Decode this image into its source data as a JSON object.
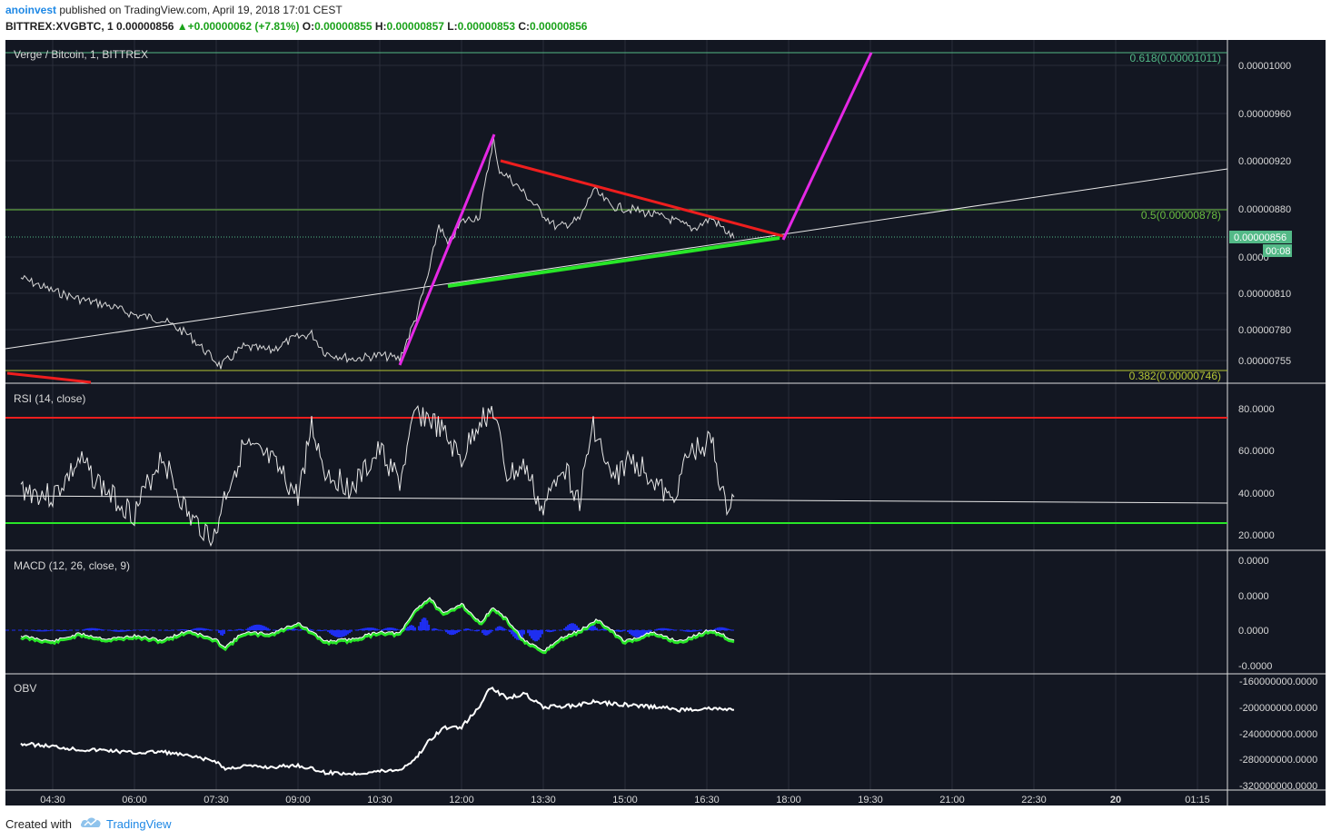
{
  "header": {
    "author": "anoinvest",
    "published_text": "published on TradingView.com, April 19, 2018 17:01 CEST",
    "symbol": "BITTREX:XVGBTC, 1",
    "last_price": "0.00000856",
    "change": "+0.00000062 (+7.81%)",
    "o_label": "O:",
    "o_value": "0.00000855",
    "h_label": "H:",
    "h_value": "0.00000857",
    "l_label": "L:",
    "l_value": "0.00000853",
    "c_label": "C:",
    "c_value": "0.00000856"
  },
  "footer": {
    "created_with": "Created with",
    "brand": "TradingView"
  },
  "icons": {
    "logo": "tradingview-cloud-icon",
    "change_arrow": "up-triangle-icon"
  },
  "colors": {
    "background": "#131722",
    "price_line": "#d8d8d8",
    "rsi_line": "#e8e8e8",
    "drawing_magenta": "#e528e5",
    "drawing_red": "#ee1e1e",
    "drawing_green": "#28e628",
    "fib_green": "#6abf40",
    "last_price_label": "#53b987",
    "macd_hist": "#1e2ef0",
    "obv_line": "#ffffff"
  },
  "chart_data": [
    {
      "type": "line",
      "pane": "price",
      "title": "Verge / Bitcoin, 1, BITTREX",
      "x_axis_labels": [
        "04:30",
        "06:00",
        "07:30",
        "09:00",
        "10:30",
        "12:00",
        "13:30",
        "15:00",
        "16:30",
        "18:00",
        "19:30",
        "21:00",
        "22:30",
        "20",
        "01:15"
      ],
      "y_axis_labels": [
        "0.00001000",
        "0.00000960",
        "0.00000920",
        "0.00000880",
        "0.0000",
        "0.00000810",
        "0.00000780",
        "0.00000755"
      ],
      "ylim": [
        7.5e-06,
        1.011e-05
      ],
      "series": [
        {
          "x": [
            "03:55",
            "04:30",
            "05:00",
            "05:30",
            "06:00",
            "06:30",
            "07:00",
            "07:20",
            "07:35",
            "08:00",
            "08:30",
            "08:55",
            "09:15",
            "09:30",
            "10:00",
            "10:30",
            "10:52",
            "11:10",
            "11:25",
            "11:35",
            "11:45",
            "12:00",
            "12:20",
            "12:35",
            "12:40",
            "12:55",
            "13:10",
            "13:25",
            "13:45",
            "14:10",
            "14:25",
            "14:45",
            "15:10",
            "15:30",
            "15:50",
            "16:15",
            "16:35",
            "17:00"
          ],
          "values": [
            8.23e-06,
            8.12e-06,
            8.05e-06,
            8e-06,
            7.92e-06,
            7.88e-06,
            7.75e-06,
            7.6e-06,
            7.49e-06,
            7.65e-06,
            7.62e-06,
            7.72e-06,
            7.76e-06,
            7.6e-06,
            7.55e-06,
            7.58e-06,
            7.55e-06,
            7.9e-06,
            8.3e-06,
            8.68e-06,
            8.5e-06,
            8.7e-06,
            8.75e-06,
            9.4e-06,
            9.15e-06,
            9.05e-06,
            8.93e-06,
            8.8e-06,
            8.65e-06,
            8.72e-06,
            8.97e-06,
            8.83e-06,
            8.8e-06,
            8.76e-06,
            8.72e-06,
            8.64e-06,
            8.73e-06,
            8.56e-06
          ]
        }
      ],
      "last_price_label": "0.00000856",
      "countdown_label": "00:08",
      "fib_levels": [
        {
          "label": "0.618(0.00001011)",
          "value": 1.011e-05
        },
        {
          "label": "0.5(0.00000878)",
          "value": 8.78e-06
        },
        {
          "label": "0.382(0.00000746)",
          "value": 7.46e-06
        }
      ]
    },
    {
      "type": "line",
      "pane": "rsi",
      "title": "RSI (14, close)",
      "y_axis_labels": [
        "80.0000",
        "60.0000",
        "40.0000",
        "20.0000"
      ],
      "ylim": [
        15,
        87
      ],
      "levels": [
        75,
        25
      ],
      "series": [
        {
          "x": [
            "03:55",
            "04:30",
            "05:00",
            "05:30",
            "06:00",
            "06:30",
            "07:00",
            "07:30",
            "07:35",
            "08:00",
            "08:30",
            "09:00",
            "09:15",
            "09:30",
            "10:00",
            "10:30",
            "10:52",
            "11:10",
            "11:25",
            "11:40",
            "12:00",
            "12:20",
            "12:35",
            "12:50",
            "13:10",
            "13:30",
            "13:50",
            "14:10",
            "14:25",
            "14:45",
            "15:05",
            "15:25",
            "15:50",
            "16:10",
            "16:35",
            "16:50",
            "17:00"
          ],
          "values": [
            42,
            38,
            55,
            40,
            30,
            58,
            28,
            18,
            33,
            62,
            55,
            38,
            72,
            50,
            42,
            60,
            45,
            78,
            75,
            68,
            55,
            75,
            79,
            48,
            52,
            30,
            55,
            36,
            73,
            45,
            56,
            50,
            35,
            58,
            65,
            33,
            38
          ]
        }
      ]
    },
    {
      "type": "line",
      "pane": "macd",
      "title": "MACD (12, 26, close, 9)",
      "y_axis_labels": [
        "0.0000",
        "0.0000",
        "0.0000",
        "-0.0000"
      ],
      "series": [
        {
          "name": "",
          "x": [
            "03:55",
            "04:30",
            "05:00",
            "05:30",
            "06:00",
            "06:30",
            "07:00",
            "07:30",
            "07:40",
            "08:00",
            "08:30",
            "09:00",
            "09:30",
            "10:00",
            "10:30",
            "10:52",
            "11:10",
            "11:25",
            "11:40",
            "12:00",
            "12:20",
            "12:35",
            "12:50",
            "13:10",
            "13:30",
            "13:50",
            "14:10",
            "14:30",
            "15:00",
            "15:30",
            "16:00",
            "16:35",
            "17:00"
          ],
          "values": [
            0.0,
            -0.5,
            0.2,
            -0.3,
            0.0,
            -0.4,
            0.5,
            -0.4,
            -1.0,
            0.3,
            0.2,
            1.2,
            -0.5,
            -0.3,
            0.4,
            0.2,
            2.5,
            3.5,
            2.0,
            3.0,
            1.2,
            2.6,
            1.5,
            -0.5,
            -1.4,
            -0.2,
            0.5,
            1.5,
            -0.5,
            0.3,
            -0.5,
            0.6,
            -0.4
          ]
        }
      ]
    },
    {
      "type": "line",
      "pane": "obv",
      "title": "OBV",
      "y_axis_labels": [
        "-160000000.0000",
        "-200000000.0000",
        "-240000000.0000",
        "-280000000.0000",
        "-320000000.0000"
      ],
      "ylim": [
        -320000000,
        -160000000
      ],
      "series": [
        {
          "x": [
            "03:55",
            "04:30",
            "05:00",
            "05:30",
            "06:00",
            "06:30",
            "07:00",
            "07:30",
            "07:40",
            "08:00",
            "08:30",
            "09:00",
            "09:30",
            "10:00",
            "10:30",
            "10:52",
            "11:10",
            "11:25",
            "11:40",
            "12:00",
            "12:20",
            "12:30",
            "12:50",
            "13:10",
            "13:30",
            "14:00",
            "14:25",
            "14:50",
            "15:15",
            "15:40",
            "16:00",
            "16:30",
            "17:00"
          ],
          "values": [
            -256000000,
            -260000000,
            -265000000,
            -266000000,
            -270000000,
            -268000000,
            -275000000,
            -283000000,
            -295000000,
            -290000000,
            -292000000,
            -289000000,
            -300000000,
            -302000000,
            -298000000,
            -296000000,
            -278000000,
            -250000000,
            -232000000,
            -230000000,
            -200000000,
            -170000000,
            -185000000,
            -180000000,
            -200000000,
            -198000000,
            -192000000,
            -195000000,
            -198000000,
            -200000000,
            -204000000,
            -202000000,
            -204000000
          ]
        }
      ]
    }
  ]
}
